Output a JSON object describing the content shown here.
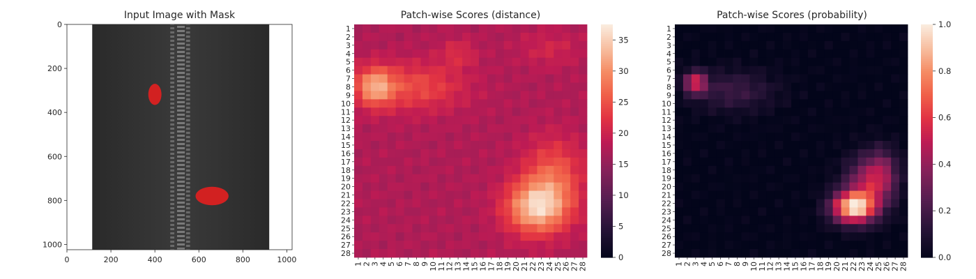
{
  "figure": {
    "panels": [
      {
        "title": "Input Image with Mask"
      },
      {
        "title": "Patch-wise Scores (distance)"
      },
      {
        "title": "Patch-wise Scores (probability)"
      }
    ]
  },
  "chart_data": [
    {
      "type": "image",
      "title": "Input Image with Mask",
      "xlim": [
        0,
        1024
      ],
      "ylim": [
        1024,
        0
      ],
      "x_ticks": [
        "0",
        "200",
        "400",
        "600",
        "800",
        "1000"
      ],
      "y_ticks": [
        "0",
        "200",
        "400",
        "600",
        "800",
        "1000"
      ],
      "image": {
        "subject": "dark zipper on white background",
        "zipper_band_x": [
          115,
          920
        ],
        "teeth_x": [
          470,
          560
        ]
      },
      "mask_regions": [
        {
          "color": "#e02020",
          "cx": 400,
          "cy": 318,
          "rx": 30,
          "ry": 48
        },
        {
          "color": "#e02020",
          "cx": 660,
          "cy": 780,
          "rx": 75,
          "ry": 42
        }
      ],
      "colors": {
        "mask": "#e02020",
        "zipper": "#2e2e2e",
        "teeth": "#5a5a5a"
      }
    },
    {
      "type": "heatmap",
      "title": "Patch-wise Scores (distance)",
      "x_ticks": [
        "1",
        "2",
        "3",
        "4",
        "5",
        "6",
        "7",
        "8",
        "9",
        "10",
        "11",
        "12",
        "13",
        "14",
        "15",
        "16",
        "17",
        "18",
        "19",
        "20",
        "21",
        "22",
        "23",
        "24",
        "25",
        "26",
        "27",
        "28"
      ],
      "y_ticks": [
        "1",
        "2",
        "3",
        "4",
        "5",
        "6",
        "7",
        "8",
        "9",
        "10",
        "11",
        "12",
        "13",
        "14",
        "15",
        "16",
        "17",
        "18",
        "19",
        "20",
        "21",
        "22",
        "23",
        "24",
        "25",
        "26",
        "27",
        "28"
      ],
      "grid_size": 28,
      "value_range": [
        0,
        37.5
      ],
      "colorbar_ticks": [
        "0",
        "5",
        "10",
        "15",
        "20",
        "25",
        "30",
        "35"
      ],
      "colorbar_tick_values": [
        0,
        5,
        10,
        15,
        20,
        25,
        30,
        35
      ],
      "colormap": "rocket",
      "base_value": 17.5,
      "hotspots": [
        {
          "row": 8,
          "col": 3,
          "sr": 1.6,
          "sc": 1.6,
          "amp": 13
        },
        {
          "row": 8,
          "col": 8,
          "sr": 2.0,
          "sc": 4.0,
          "amp": 7
        },
        {
          "row": 4,
          "col": 13,
          "sr": 1.2,
          "sc": 1.5,
          "amp": 4
        },
        {
          "row": 3.5,
          "col": 24,
          "sr": 1.5,
          "sc": 2.5,
          "amp": 3
        },
        {
          "row": 22.5,
          "col": 22.5,
          "sr": 2.2,
          "sc": 2.6,
          "amp": 17
        },
        {
          "row": 18.5,
          "col": 24.5,
          "sr": 3.0,
          "sc": 2.5,
          "amp": 8
        }
      ]
    },
    {
      "type": "heatmap",
      "title": "Patch-wise Scores (probability)",
      "x_ticks": [
        "1",
        "2",
        "3",
        "4",
        "5",
        "6",
        "7",
        "8",
        "9",
        "10",
        "11",
        "12",
        "13",
        "14",
        "15",
        "16",
        "17",
        "18",
        "19",
        "20",
        "21",
        "22",
        "23",
        "24",
        "25",
        "26",
        "27",
        "28"
      ],
      "y_ticks": [
        "1",
        "2",
        "3",
        "4",
        "5",
        "6",
        "7",
        "8",
        "9",
        "10",
        "11",
        "12",
        "13",
        "14",
        "15",
        "16",
        "17",
        "18",
        "19",
        "20",
        "21",
        "22",
        "23",
        "24",
        "25",
        "26",
        "27",
        "28"
      ],
      "grid_size": 28,
      "value_range": [
        0,
        1.0
      ],
      "colorbar_ticks": [
        "0.0",
        "0.2",
        "0.4",
        "0.6",
        "0.8",
        "1.0"
      ],
      "colorbar_tick_values": [
        0,
        0.2,
        0.4,
        0.6,
        0.8,
        1.0
      ],
      "colormap": "rocket",
      "base_value": 0,
      "hotspots": [
        {
          "row": 7.5,
          "col": 3,
          "sr": 0.9,
          "sc": 0.9,
          "amp": 0.55
        },
        {
          "row": 8.5,
          "col": 7.5,
          "sr": 1.7,
          "sc": 3.5,
          "amp": 0.18
        },
        {
          "row": 22.5,
          "col": 22,
          "sr": 1.3,
          "sc": 1.8,
          "amp": 0.95
        },
        {
          "row": 19.5,
          "col": 24,
          "sr": 2.2,
          "sc": 2.0,
          "amp": 0.45
        },
        {
          "row": 18,
          "col": 25.5,
          "sr": 2.0,
          "sc": 1.2,
          "amp": 0.2
        }
      ]
    }
  ]
}
